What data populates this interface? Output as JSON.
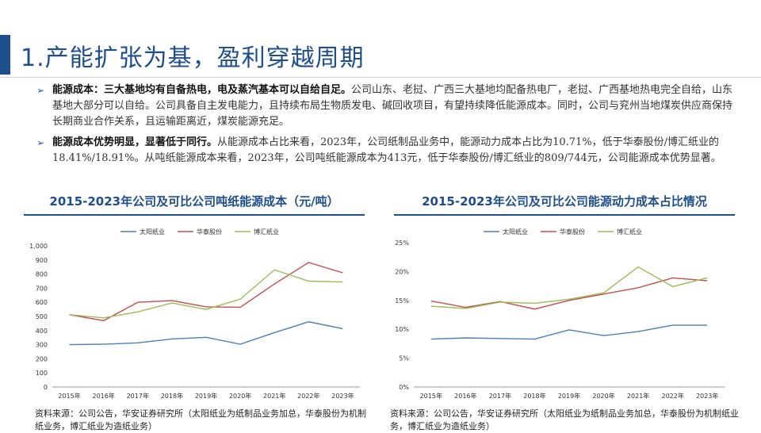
{
  "slide": {
    "title": "1.产能扩张为基，盈利穿越周期",
    "bullets": [
      {
        "bold": "能源成本：三大基地均有自备热电，电及蒸汽基本可以自给自足。",
        "text": "公司山东、老挝、广西三大基地均配备热电厂，老挝、广西基地热电完全自给，山东基地大部分可以自给。公司具备自主发电能力，且持续布局生物质发电、碱回收项目，有望持续降低能源成本。同时，公司与兖州当地煤炭供应商保持长期商业合作关系，且运输距离近，煤炭能源充足。"
      },
      {
        "bold": "能源成本优势明显，显著低于同行。",
        "text": "从能源成本占比来看，2023年，公司纸制品业务中，能源动力成本占比为10.71%，低于华泰股份/博汇纸业的18.41%/18.91%。从吨纸能源成本来看，2023年，公司吨纸能源成本为413元，低于华泰股份/博汇纸业的809/744元，公司能源成本优势显著。"
      }
    ],
    "source_left": "资料来源：公司公告，华安证券研究所（太阳纸业为纸制品业务加总，华泰股份为机制纸业务，博汇纸业为造纸业务）",
    "source_right": "资料来源：公司公告，华安证券研究所（太阳纸业为纸制品业务加总，华泰股份为机制纸业务，博汇纸业为造纸业务）"
  },
  "chart_data": [
    {
      "type": "line",
      "title": "2015-2023年公司及可比公司吨纸能源成本（元/吨）",
      "x": [
        "2015年",
        "2016年",
        "2017年",
        "2018年",
        "2019年",
        "2020年",
        "2021年",
        "2022年",
        "2023年"
      ],
      "yticks": [
        "0",
        "100",
        "200",
        "300",
        "400",
        "500",
        "600",
        "700",
        "800",
        "900",
        "1,000"
      ],
      "ylim": [
        0,
        1000
      ],
      "legend": "top",
      "grid": false,
      "series": [
        {
          "name": "太阳纸业",
          "color": "#4a7ebb",
          "values": [
            300,
            303,
            313,
            340,
            352,
            303,
            385,
            462,
            413
          ]
        },
        {
          "name": "华泰股份",
          "color": "#c0504d",
          "values": [
            512,
            470,
            600,
            612,
            568,
            565,
            730,
            882,
            809
          ]
        },
        {
          "name": "博汇纸业",
          "color": "#9bbb59",
          "values": [
            512,
            490,
            532,
            595,
            550,
            622,
            830,
            750,
            744
          ]
        }
      ]
    },
    {
      "type": "line",
      "title": "2015-2023年公司及可比公司能源动力成本占比情况",
      "x": [
        "2015年",
        "2016年",
        "2017年",
        "2018年",
        "2019年",
        "2020年",
        "2021年",
        "2022年",
        "2023年"
      ],
      "yticks": [
        "0%",
        "5%",
        "10%",
        "15%",
        "20%",
        "25%"
      ],
      "ylim": [
        0,
        25
      ],
      "legend": "top",
      "grid": false,
      "series": [
        {
          "name": "太阳纸业",
          "color": "#4a7ebb",
          "values": [
            8.3,
            8.5,
            8.4,
            8.3,
            9.9,
            8.9,
            9.6,
            10.7,
            10.71
          ]
        },
        {
          "name": "华泰股份",
          "color": "#c0504d",
          "values": [
            14.9,
            13.8,
            14.8,
            13.5,
            15.0,
            16.1,
            17.2,
            18.9,
            18.41
          ]
        },
        {
          "name": "博汇纸业",
          "color": "#9bbb59",
          "values": [
            14.0,
            13.6,
            14.7,
            14.5,
            15.2,
            16.3,
            20.8,
            17.4,
            18.91
          ]
        }
      ]
    }
  ]
}
